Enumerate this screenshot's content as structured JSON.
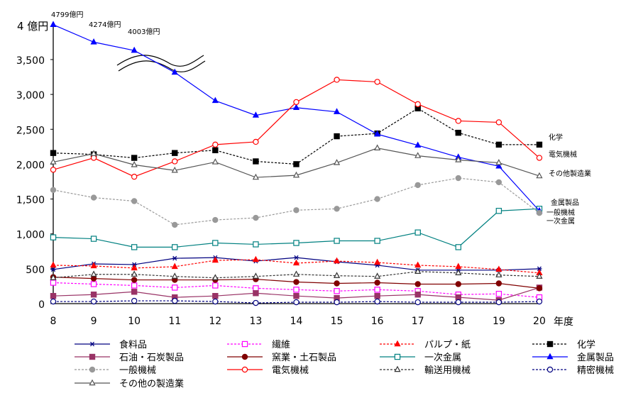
{
  "chart_data": {
    "type": "line",
    "title": "",
    "xlabel": "年度",
    "ylabel": "4 億円",
    "x": [
      8,
      9,
      10,
      11,
      12,
      13,
      14,
      15,
      16,
      17,
      18,
      19,
      20
    ],
    "x_tick_labels": [
      "8",
      "9",
      "10",
      "11",
      "12",
      "13",
      "14",
      "15",
      "16",
      "17",
      "18",
      "19",
      "20"
    ],
    "ylim": [
      0,
      4000
    ],
    "y_ticks": [
      0,
      500,
      1000,
      1500,
      2000,
      2500,
      3000,
      3500
    ],
    "y_tick_labels": [
      "0",
      "500",
      "1,000",
      "1,500",
      "2,000",
      "2,500",
      "3,000",
      "3,500"
    ],
    "y_top_label": "4 億円",
    "axis_break": "between 3,500 and 4,000 (wavy break marks)",
    "annotations": [
      {
        "text": "4799億円",
        "series": "金属製品",
        "x": 8
      },
      {
        "text": "4274億円",
        "series": "金属製品",
        "x": 9
      },
      {
        "text": "4003億円",
        "series": "金属製品",
        "x": 10
      }
    ],
    "end_labels": [
      "化学",
      "電気機械",
      "その他製造業",
      "金属製品",
      "一般機械",
      "一次金属"
    ],
    "legend_position": "bottom",
    "grid": false,
    "series": [
      {
        "name": "食料品",
        "color": "#000080",
        "marker": "asterisk",
        "dash": false,
        "values": [
          490,
          570,
          560,
          650,
          660,
          610,
          660,
          600,
          550,
          480,
          480,
          480,
          500
        ]
      },
      {
        "name": "繊維",
        "color": "#ff00ff",
        "marker": "square-open",
        "dash": true,
        "values": [
          300,
          280,
          260,
          230,
          260,
          220,
          200,
          180,
          200,
          180,
          130,
          140,
          90
        ]
      },
      {
        "name": "パルプ・紙",
        "color": "#ff0000",
        "marker": "triangle-filled",
        "dash": true,
        "values": [
          550,
          540,
          510,
          530,
          620,
          630,
          580,
          610,
          590,
          550,
          530,
          490,
          440
        ]
      },
      {
        "name": "化学",
        "color": "#000000",
        "marker": "square-filled",
        "dash": true,
        "values": [
          2160,
          2140,
          2090,
          2160,
          2200,
          2040,
          2000,
          2400,
          2440,
          2800,
          2450,
          2280,
          2280
        ]
      },
      {
        "name": "石油・石炭製品",
        "color": "#993366",
        "marker": "square-filled",
        "dash": false,
        "values": [
          110,
          130,
          170,
          90,
          110,
          150,
          110,
          80,
          110,
          130,
          90,
          50,
          230
        ]
      },
      {
        "name": "窯業・土石製品",
        "color": "#800000",
        "marker": "circle-filled",
        "dash": false,
        "values": [
          380,
          360,
          340,
          340,
          340,
          350,
          310,
          290,
          300,
          280,
          280,
          290,
          220
        ]
      },
      {
        "name": "一次金属",
        "color": "#008080",
        "marker": "square-open",
        "dash": false,
        "values": [
          950,
          930,
          810,
          810,
          870,
          850,
          870,
          900,
          900,
          1020,
          810,
          1330,
          1360
        ]
      },
      {
        "name": "金属製品",
        "color": "#0000ff",
        "marker": "triangle-filled",
        "dash": false,
        "values": [
          4000,
          3750,
          3630,
          3316,
          2910,
          2700,
          2810,
          2750,
          2430,
          2270,
          2100,
          1970,
          1330
        ]
      },
      {
        "name": "一般機械",
        "color": "#999999",
        "marker": "circle-filled",
        "dash": true,
        "values": [
          1630,
          1520,
          1470,
          1130,
          1200,
          1230,
          1340,
          1360,
          1500,
          1700,
          1800,
          1740,
          1300
        ]
      },
      {
        "name": "電気機械",
        "color": "#ff0000",
        "marker": "circle-open",
        "dash": false,
        "values": [
          1920,
          2090,
          1820,
          2040,
          2280,
          2320,
          2890,
          3210,
          3180,
          2860,
          2620,
          2600,
          2090
        ]
      },
      {
        "name": "輸送用機械",
        "color": "#333333",
        "marker": "triangle-open",
        "dash": true,
        "values": [
          370,
          420,
          420,
          390,
          370,
          390,
          420,
          400,
          390,
          460,
          440,
          410,
          390
        ]
      },
      {
        "name": "精密機械",
        "color": "#000080",
        "marker": "circle-open",
        "dash": true,
        "values": [
          30,
          30,
          40,
          40,
          30,
          10,
          20,
          20,
          30,
          20,
          20,
          20,
          30
        ]
      },
      {
        "name": "その他の製造業",
        "color": "#555555",
        "marker": "triangle-open",
        "dash": false,
        "values": [
          2030,
          2150,
          1990,
          1910,
          2030,
          1810,
          1840,
          2020,
          2230,
          2120,
          2060,
          2020,
          1830
        ]
      }
    ]
  }
}
